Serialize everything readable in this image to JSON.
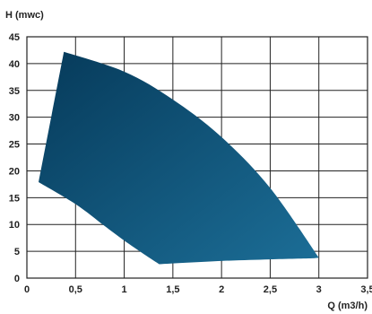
{
  "chart_data": {
    "type": "area",
    "title": "",
    "xlabel": "Q (m3/h)",
    "ylabel": "H (mwc)",
    "xlim": [
      0,
      3.5
    ],
    "ylim": [
      0,
      45
    ],
    "grid": true,
    "x_ticks": [
      0,
      0.5,
      1,
      1.5,
      2,
      2.5,
      3,
      3.5
    ],
    "y_ticks": [
      0,
      5,
      10,
      15,
      20,
      25,
      30,
      35,
      40,
      45
    ],
    "x_tick_labels": [
      "0",
      "0,5",
      "1",
      "1,5",
      "2",
      "2,5",
      "3",
      "3,5"
    ],
    "y_tick_labels": [
      "0",
      "5",
      "10",
      "15",
      "20",
      "25",
      "30",
      "35",
      "40",
      "45"
    ],
    "fill_gradient": [
      "#063a5a",
      "#1c6e97"
    ],
    "region": {
      "upper_curve": [
        [
          0.38,
          42.2
        ],
        [
          1.0,
          38.5
        ],
        [
          1.5,
          33.3
        ],
        [
          2.0,
          26.3
        ],
        [
          2.5,
          16.8
        ],
        [
          3.0,
          3.8
        ]
      ],
      "right_end": [
        [
          3.0,
          3.8
        ],
        [
          2.95,
          3.7
        ]
      ],
      "lower_curve": [
        [
          2.95,
          3.7
        ],
        [
          2.5,
          3.5
        ],
        [
          2.0,
          3.2
        ],
        [
          1.36,
          2.6
        ]
      ],
      "left_curve": [
        [
          1.36,
          2.6
        ],
        [
          1.2,
          4.5
        ],
        [
          1.0,
          7.0
        ],
        [
          0.8,
          9.7
        ],
        [
          0.5,
          13.8
        ],
        [
          0.12,
          17.9
        ]
      ],
      "left_edge": [
        [
          0.12,
          17.9
        ],
        [
          0.38,
          42.2
        ]
      ]
    }
  }
}
